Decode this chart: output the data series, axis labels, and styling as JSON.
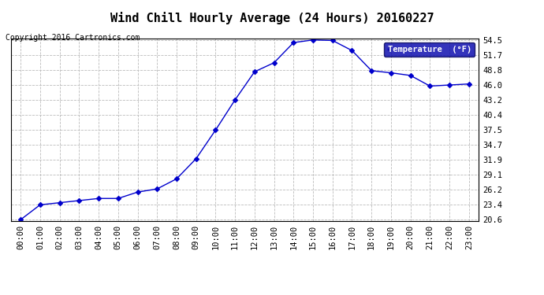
{
  "title": "Wind Chill Hourly Average (24 Hours) 20160227",
  "copyright": "Copyright 2016 Cartronics.com",
  "legend_label": "Temperature  (°F)",
  "x_labels": [
    "00:00",
    "01:00",
    "02:00",
    "03:00",
    "04:00",
    "05:00",
    "06:00",
    "07:00",
    "08:00",
    "09:00",
    "10:00",
    "11:00",
    "12:00",
    "13:00",
    "14:00",
    "15:00",
    "16:00",
    "17:00",
    "18:00",
    "19:00",
    "20:00",
    "21:00",
    "22:00",
    "23:00"
  ],
  "y_values": [
    20.6,
    23.4,
    23.8,
    24.2,
    24.6,
    24.6,
    25.8,
    26.4,
    28.3,
    32.1,
    37.5,
    43.2,
    48.5,
    50.2,
    54.0,
    54.5,
    54.4,
    52.5,
    48.7,
    48.3,
    47.8,
    45.8,
    46.0,
    46.2
  ],
  "ylim_min": 20.6,
  "ylim_max": 54.5,
  "yticks": [
    20.6,
    23.4,
    26.2,
    29.1,
    31.9,
    34.7,
    37.5,
    40.4,
    43.2,
    46.0,
    48.8,
    51.7,
    54.5
  ],
  "line_color": "#0000cc",
  "marker": "D",
  "marker_size": 3,
  "bg_color": "#ffffff",
  "plot_bg_color": "#ffffff",
  "grid_color": "#bbbbbb",
  "title_fontsize": 11,
  "copyright_fontsize": 7,
  "tick_fontsize": 7.5,
  "legend_bg_color": "#0000aa",
  "legend_text_color": "#ffffff"
}
